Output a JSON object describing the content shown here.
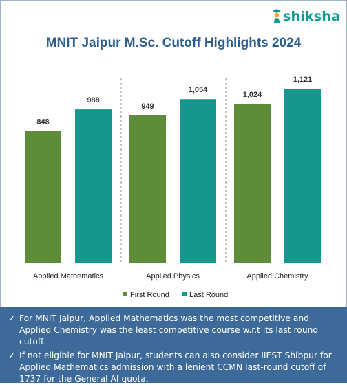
{
  "brand": {
    "name": "shiksha"
  },
  "chart_data": {
    "type": "bar",
    "title": "MNIT Jaipur M.Sc. Cutoff Highlights 2024",
    "categories": [
      "Applied Mathematics",
      "Applied Physics",
      "Applied Chemistry"
    ],
    "series": [
      {
        "name": "First Round",
        "values": [
          848,
          949,
          1024
        ],
        "labels": [
          "848",
          "949",
          "1,024"
        ],
        "color": "#5e8c3a"
      },
      {
        "name": "Last Round",
        "values": [
          988,
          1054,
          1121
        ],
        "labels": [
          "988",
          "1,054",
          "1,121"
        ],
        "color": "#15968f"
      }
    ],
    "ylim": [
      0,
      1250
    ],
    "grid": false,
    "legend": "bottom"
  },
  "notes": [
    {
      "icon": "checkmark-icon",
      "text": "For MNIT Jaipur, Applied Mathematics was the most competitive and Applied Chemistry was the least competitive course w.r.t its last round cutoff."
    },
    {
      "icon": "checkmark-icon",
      "text": "If not eligible for MNIT Jaipur, students can also consider IIEST Shibpur for Applied Mathematics admission with a lenient CCMN last-round cutoff of 1737 for the General AI quota."
    }
  ]
}
